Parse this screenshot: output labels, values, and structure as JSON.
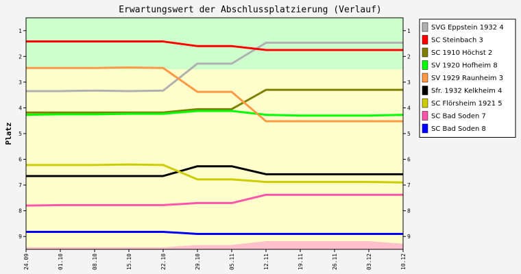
{
  "chart_data": {
    "type": "line",
    "title": "Erwartungswert der Abschlussplatzierung (Verlauf)",
    "ylabel": "Platz",
    "xlabel": "",
    "y_inverted": true,
    "ylim": [
      0.5,
      9.5
    ],
    "y_ticks": [
      "1",
      "2",
      "3",
      "4",
      "5",
      "6",
      "7",
      "8",
      "9"
    ],
    "x": [
      "24.09",
      "01.10",
      "08.10",
      "15.10",
      "22.10",
      "29.10",
      "05.11",
      "12.11",
      "19.11",
      "26.11",
      "03.12",
      "10.12"
    ],
    "zones": [
      {
        "from": 0.5,
        "to": 2.5,
        "color": "#ccffcc"
      },
      {
        "from": 2.5,
        "to": 9.5,
        "color": "#ffffcc"
      }
    ],
    "legend_position": "right",
    "series": [
      {
        "name": "SVG Eppstein 1932 4",
        "color": "#b0b0b0",
        "values": [
          3.35,
          3.35,
          3.33,
          3.35,
          3.33,
          2.28,
          2.28,
          1.47,
          1.47,
          1.47,
          1.47,
          1.47
        ]
      },
      {
        "name": "SC Steinbach 3",
        "color": "#ff0000",
        "values": [
          1.42,
          1.42,
          1.42,
          1.42,
          1.42,
          1.6,
          1.6,
          1.75,
          1.75,
          1.75,
          1.75,
          1.75
        ]
      },
      {
        "name": "SC 1910 Höchst 2",
        "color": "#808000",
        "values": [
          4.18,
          4.18,
          4.18,
          4.18,
          4.18,
          4.05,
          4.05,
          3.3,
          3.3,
          3.3,
          3.3,
          3.3
        ]
      },
      {
        "name": "SV 1920 Hofheim 8",
        "color": "#00ff00",
        "values": [
          4.27,
          4.25,
          4.25,
          4.23,
          4.23,
          4.12,
          4.12,
          4.27,
          4.3,
          4.3,
          4.3,
          4.27
        ]
      },
      {
        "name": "SV 1929 Raunheim 3",
        "color": "#ff9944",
        "values": [
          2.45,
          2.45,
          2.45,
          2.43,
          2.45,
          3.38,
          3.38,
          4.52,
          4.52,
          4.52,
          4.52,
          4.52
        ]
      },
      {
        "name": "Sfr. 1932 Kelkheim 4",
        "color": "#000000",
        "values": [
          6.65,
          6.65,
          6.65,
          6.65,
          6.65,
          6.27,
          6.27,
          6.58,
          6.58,
          6.58,
          6.58,
          6.58
        ]
      },
      {
        "name": "SC Flörsheim 1921 5",
        "color": "#cccc00",
        "values": [
          6.22,
          6.22,
          6.22,
          6.2,
          6.22,
          6.78,
          6.78,
          6.88,
          6.88,
          6.88,
          6.88,
          6.9
        ]
      },
      {
        "name": "SC Bad Soden 7",
        "color": "#ff55aa",
        "values": [
          7.8,
          7.78,
          7.78,
          7.78,
          7.78,
          7.7,
          7.7,
          7.38,
          7.38,
          7.38,
          7.38,
          7.38
        ]
      },
      {
        "name": "SC Bad Soden 8",
        "color": "#0000ff",
        "values": [
          8.82,
          8.82,
          8.82,
          8.82,
          8.82,
          8.9,
          8.9,
          8.9,
          8.9,
          8.9,
          8.9,
          8.9
        ]
      }
    ],
    "bottom_band": {
      "color": "#ffc0cb",
      "top_values": [
        9.42,
        9.42,
        9.42,
        9.42,
        9.42,
        9.33,
        9.33,
        9.18,
        9.18,
        9.18,
        9.18,
        9.28
      ]
    }
  }
}
